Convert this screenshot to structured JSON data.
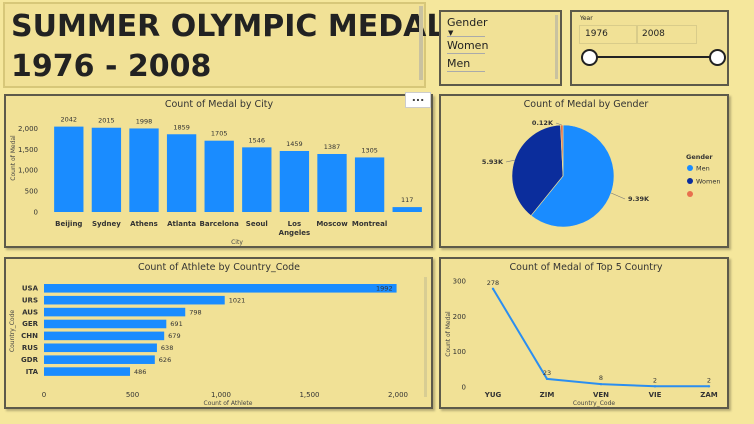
{
  "header": {
    "title_line1": "SUMMER OLYMPIC MEDAL",
    "title_line2": "1976 - 2008"
  },
  "gender_slicer": {
    "title": "Gender",
    "options": [
      "Women",
      "Men"
    ]
  },
  "year_slicer": {
    "title": "Year",
    "from": "1976",
    "to": "2008",
    "slider_value_fraction": [
      0,
      1
    ]
  },
  "more_options": "...",
  "colors": {
    "bar": "#1a8cff",
    "men": "#1a8cff",
    "women": "#0b2d9c",
    "other": "#e8704e",
    "line": "#2b8ef0",
    "panel": "#f1e196",
    "border": "#5d5a4a"
  },
  "chart_data": [
    {
      "type": "bar",
      "title": "Count of Medal by City",
      "xlabel": "City",
      "ylabel": "Count of Medal",
      "categories": [
        "Beijing",
        "Sydney",
        "Athens",
        "Atlanta",
        "Barcelona",
        "Seoul",
        "Los Angeles",
        "Moscow",
        "Montreal",
        ""
      ],
      "values": [
        2042,
        2015,
        1998,
        1859,
        1705,
        1546,
        1459,
        1387,
        1305,
        117
      ],
      "data_labels": [
        "2042",
        "2015",
        "1998",
        "1859",
        "1705",
        "1546",
        "1459",
        "1387",
        "1305",
        "117"
      ],
      "yticks": [
        "0",
        "500",
        "1,000",
        "1,500",
        "2,000"
      ],
      "ylim": [
        0,
        2200
      ]
    },
    {
      "type": "pie",
      "title": "Count of Medal by Gender",
      "legend_title": "Gender",
      "labels": [
        "Men",
        "Women",
        ""
      ],
      "values": [
        9390,
        5930,
        120
      ],
      "data_labels": [
        "9.39K",
        "5.93K",
        "0.12K"
      ],
      "legend": "right"
    },
    {
      "type": "bar",
      "orientation": "horizontal",
      "title": "Count of Athlete by Country_Code",
      "xlabel": "Count of Athlete",
      "ylabel": "Country_Code",
      "categories": [
        "USA",
        "URS",
        "AUS",
        "GER",
        "CHN",
        "RUS",
        "GDR",
        "ITA"
      ],
      "values": [
        1992,
        1021,
        798,
        691,
        679,
        638,
        626,
        486
      ],
      "data_labels": [
        "1992",
        "1021",
        "798",
        "691",
        "679",
        "638",
        "626",
        "486"
      ],
      "xticks": [
        "0",
        "500",
        "1,000",
        "1,500",
        "2,000"
      ],
      "xlim": [
        0,
        2000
      ]
    },
    {
      "type": "line",
      "title": "Count of Medal of Top 5 Country",
      "xlabel": "Country_Code",
      "ylabel": "Count of Medal",
      "categories": [
        "YUG",
        "ZIM",
        "VEN",
        "VIE",
        "ZAM"
      ],
      "values": [
        278,
        23,
        8,
        2,
        2
      ],
      "data_labels": [
        "278",
        "23",
        "8",
        "2",
        "2"
      ],
      "yticks": [
        "0",
        "100",
        "200",
        "300"
      ],
      "ylim": [
        0,
        300
      ]
    }
  ]
}
